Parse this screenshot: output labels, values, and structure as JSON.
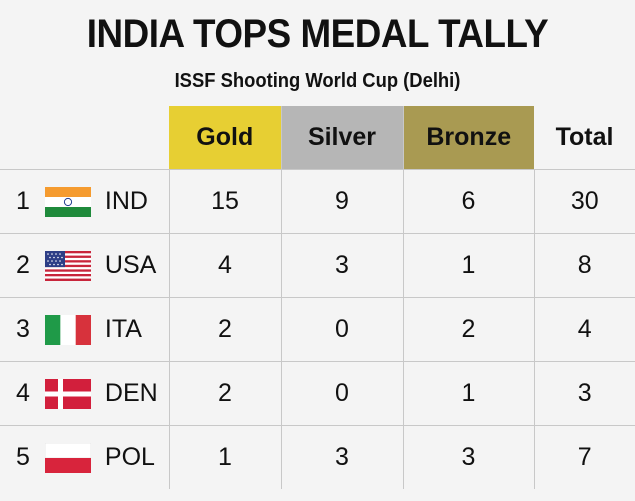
{
  "header": {
    "title": "INDIA TOPS MEDAL TALLY",
    "subtitle": "ISSF Shooting World Cup (Delhi)"
  },
  "colors": {
    "gold": "#e7cf33",
    "silver": "#b6b6b6",
    "bronze": "#a99a52",
    "background": "#f4f4f4"
  },
  "chart_data": {
    "type": "table",
    "title": "INDIA TOPS MEDAL TALLY",
    "subtitle": "ISSF Shooting World Cup (Delhi)",
    "columns": [
      "Gold",
      "Silver",
      "Bronze",
      "Total"
    ],
    "rows": [
      {
        "rank": "1",
        "flag": "india-flag-icon",
        "country": "IND",
        "values": [
          "15",
          "9",
          "6",
          "30"
        ]
      },
      {
        "rank": "2",
        "flag": "usa-flag-icon",
        "country": "USA",
        "values": [
          "4",
          "3",
          "1",
          "8"
        ]
      },
      {
        "rank": "3",
        "flag": "italy-flag-icon",
        "country": "ITA",
        "values": [
          "2",
          "0",
          "2",
          "4"
        ]
      },
      {
        "rank": "4",
        "flag": "denmark-flag-icon",
        "country": "DEN",
        "values": [
          "2",
          "0",
          "1",
          "3"
        ]
      },
      {
        "rank": "5",
        "flag": "poland-flag-icon",
        "country": "POL",
        "values": [
          "1",
          "3",
          "3",
          "7"
        ]
      }
    ]
  }
}
